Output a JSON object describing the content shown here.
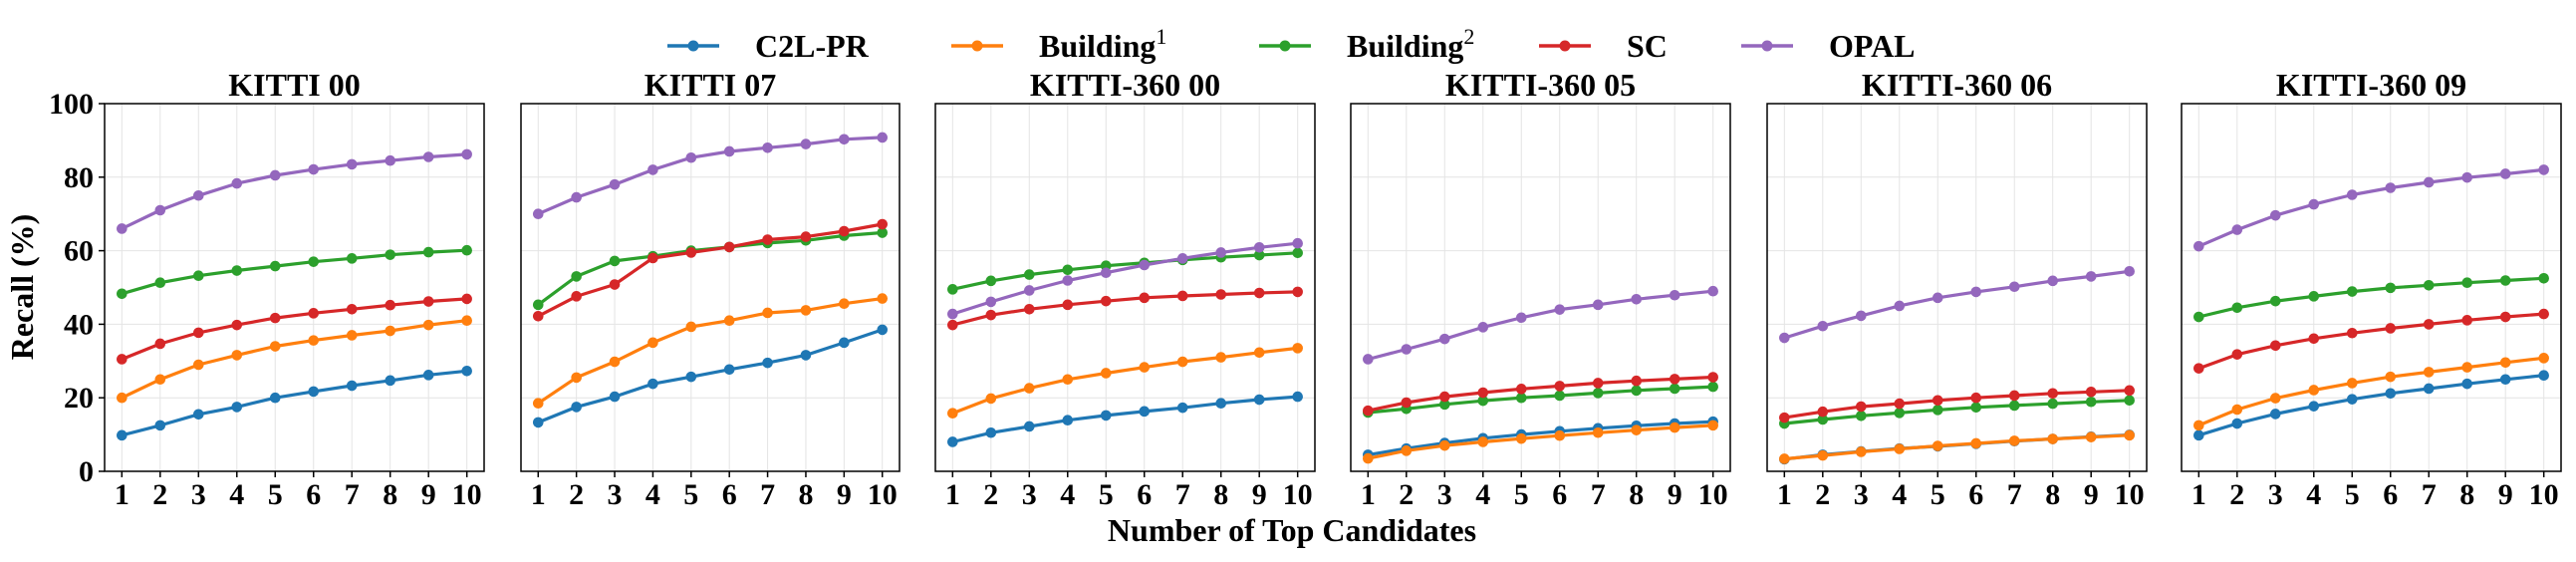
{
  "legend": [
    {
      "name": "C2L-PR",
      "sup": "",
      "color": "#1f77b4"
    },
    {
      "name": "Building",
      "sup": "1",
      "color": "#ff7f0e"
    },
    {
      "name": "Building",
      "sup": "2",
      "color": "#2ca02c"
    },
    {
      "name": "SC",
      "sup": "",
      "color": "#d62728"
    },
    {
      "name": "OPAL",
      "sup": "",
      "color": "#9467bd"
    }
  ],
  "xlabel": "Number of Top Candidates",
  "ylabel": "Recall (%)",
  "chart_data": [
    {
      "type": "line",
      "title": "KITTI 00",
      "x": [
        1,
        2,
        3,
        4,
        5,
        6,
        7,
        8,
        9,
        10
      ],
      "ylim": [
        0,
        100
      ],
      "grid": true,
      "series": [
        {
          "name": "C2L-PR",
          "values": [
            9.8,
            12.5,
            15.5,
            17.5,
            20,
            21.7,
            23.3,
            24.7,
            26.2,
            27.3
          ]
        },
        {
          "name": "Building1",
          "values": [
            20,
            25,
            29,
            31.6,
            34,
            35.6,
            37,
            38.2,
            39.8,
            41
          ]
        },
        {
          "name": "Building2",
          "values": [
            48.3,
            51.3,
            53.2,
            54.6,
            55.8,
            57,
            57.9,
            58.9,
            59.6,
            60.1
          ]
        },
        {
          "name": "SC",
          "values": [
            30.5,
            34.7,
            37.7,
            39.8,
            41.7,
            43,
            44.1,
            45.2,
            46.2,
            46.9
          ]
        },
        {
          "name": "OPAL",
          "values": [
            66,
            71,
            75,
            78.3,
            80.5,
            82.1,
            83.5,
            84.5,
            85.5,
            86.2
          ]
        }
      ]
    },
    {
      "type": "line",
      "title": "KITTI 07",
      "x": [
        1,
        2,
        3,
        4,
        5,
        6,
        7,
        8,
        9,
        10
      ],
      "ylim": [
        0,
        100
      ],
      "grid": true,
      "series": [
        {
          "name": "C2L-PR",
          "values": [
            13.3,
            17.5,
            20.3,
            23.8,
            25.7,
            27.7,
            29.5,
            31.6,
            35,
            38.5
          ]
        },
        {
          "name": "Building1",
          "values": [
            18.5,
            25.5,
            29.8,
            35,
            39.3,
            41,
            43.1,
            43.8,
            45.6,
            47
          ]
        },
        {
          "name": "Building2",
          "values": [
            45.3,
            53,
            57.2,
            58.5,
            60,
            61,
            62.1,
            62.8,
            64.1,
            64.9
          ]
        },
        {
          "name": "SC",
          "values": [
            42.2,
            47.6,
            50.8,
            58,
            59.5,
            61,
            63,
            63.8,
            65.3,
            67.2
          ]
        },
        {
          "name": "OPAL",
          "values": [
            70,
            74.5,
            78,
            82,
            85.3,
            87,
            88,
            89,
            90.3,
            90.8
          ]
        }
      ]
    },
    {
      "type": "line",
      "title": "KITTI-360 00",
      "x": [
        1,
        2,
        3,
        4,
        5,
        6,
        7,
        8,
        9,
        10
      ],
      "ylim": [
        0,
        100
      ],
      "grid": true,
      "series": [
        {
          "name": "C2L-PR",
          "values": [
            8,
            10.5,
            12.2,
            13.9,
            15.2,
            16.3,
            17.3,
            18.5,
            19.5,
            20.3
          ]
        },
        {
          "name": "Building1",
          "values": [
            15.8,
            19.8,
            22.6,
            25,
            26.7,
            28.3,
            29.8,
            31,
            32.3,
            33.5
          ]
        },
        {
          "name": "Building2",
          "values": [
            49.5,
            51.8,
            53.5,
            54.8,
            55.9,
            56.7,
            57.5,
            58.2,
            58.8,
            59.4
          ]
        },
        {
          "name": "SC",
          "values": [
            39.8,
            42.5,
            44.1,
            45.3,
            46.3,
            47.2,
            47.7,
            48.1,
            48.5,
            48.8
          ]
        },
        {
          "name": "OPAL",
          "values": [
            42.8,
            46.1,
            49.2,
            51.9,
            54,
            56.1,
            57.9,
            59.5,
            60.9,
            62
          ]
        }
      ]
    },
    {
      "type": "line",
      "title": "KITTI-360 05",
      "x": [
        1,
        2,
        3,
        4,
        5,
        6,
        7,
        8,
        9,
        10
      ],
      "ylim": [
        0,
        100
      ],
      "grid": true,
      "series": [
        {
          "name": "C2L-PR",
          "values": [
            4.5,
            6.2,
            7.7,
            9,
            10,
            10.9,
            11.7,
            12.4,
            13,
            13.5
          ]
        },
        {
          "name": "Building1",
          "values": [
            3.5,
            5.6,
            7,
            8,
            8.9,
            9.7,
            10.5,
            11.2,
            11.9,
            12.5
          ]
        },
        {
          "name": "Building2",
          "values": [
            16,
            17,
            18.2,
            19.2,
            20,
            20.6,
            21.3,
            22,
            22.5,
            23
          ]
        },
        {
          "name": "SC",
          "values": [
            16.5,
            18.7,
            20.3,
            21.4,
            22.4,
            23.2,
            24,
            24.6,
            25.1,
            25.6
          ]
        },
        {
          "name": "OPAL",
          "values": [
            30.5,
            33.2,
            36,
            39.2,
            41.8,
            44,
            45.3,
            46.8,
            47.9,
            49
          ]
        }
      ]
    },
    {
      "type": "line",
      "title": "KITTI-360 06",
      "x": [
        1,
        2,
        3,
        4,
        5,
        6,
        7,
        8,
        9,
        10
      ],
      "ylim": [
        0,
        100
      ],
      "grid": true,
      "series": [
        {
          "name": "C2L-PR",
          "values": [
            3.3,
            4.5,
            5.4,
            6.2,
            6.8,
            7.5,
            8.2,
            8.8,
            9.4,
            9.9
          ]
        },
        {
          "name": "Building1",
          "values": [
            3.4,
            4.3,
            5.3,
            6.1,
            6.9,
            7.6,
            8.3,
            8.8,
            9.3,
            9.8
          ]
        },
        {
          "name": "Building2",
          "values": [
            13,
            14.1,
            15.1,
            15.9,
            16.7,
            17.4,
            17.9,
            18.4,
            18.9,
            19.3
          ]
        },
        {
          "name": "SC",
          "values": [
            14.6,
            16.2,
            17.6,
            18.4,
            19.3,
            20,
            20.6,
            21.2,
            21.6,
            22
          ]
        },
        {
          "name": "OPAL",
          "values": [
            36.3,
            39.5,
            42.3,
            45,
            47.2,
            48.8,
            50.2,
            51.8,
            53,
            54.4
          ]
        }
      ]
    },
    {
      "type": "line",
      "title": "KITTI-360 09",
      "x": [
        1,
        2,
        3,
        4,
        5,
        6,
        7,
        8,
        9,
        10
      ],
      "ylim": [
        0,
        100
      ],
      "grid": true,
      "series": [
        {
          "name": "C2L-PR",
          "values": [
            9.8,
            13,
            15.6,
            17.7,
            19.6,
            21.2,
            22.5,
            23.8,
            25,
            26.1
          ]
        },
        {
          "name": "Building1",
          "values": [
            12.5,
            16.8,
            19.9,
            22.1,
            24,
            25.7,
            27,
            28.3,
            29.6,
            30.8
          ]
        },
        {
          "name": "Building2",
          "values": [
            42,
            44.5,
            46.3,
            47.6,
            48.9,
            49.9,
            50.6,
            51.3,
            51.9,
            52.5
          ]
        },
        {
          "name": "SC",
          "values": [
            28,
            31.8,
            34.2,
            36.1,
            37.6,
            38.9,
            40,
            41.1,
            42,
            42.8
          ]
        },
        {
          "name": "OPAL",
          "values": [
            61.2,
            65.7,
            69.6,
            72.6,
            75.2,
            77.1,
            78.6,
            79.9,
            80.9,
            82
          ]
        }
      ]
    }
  ]
}
